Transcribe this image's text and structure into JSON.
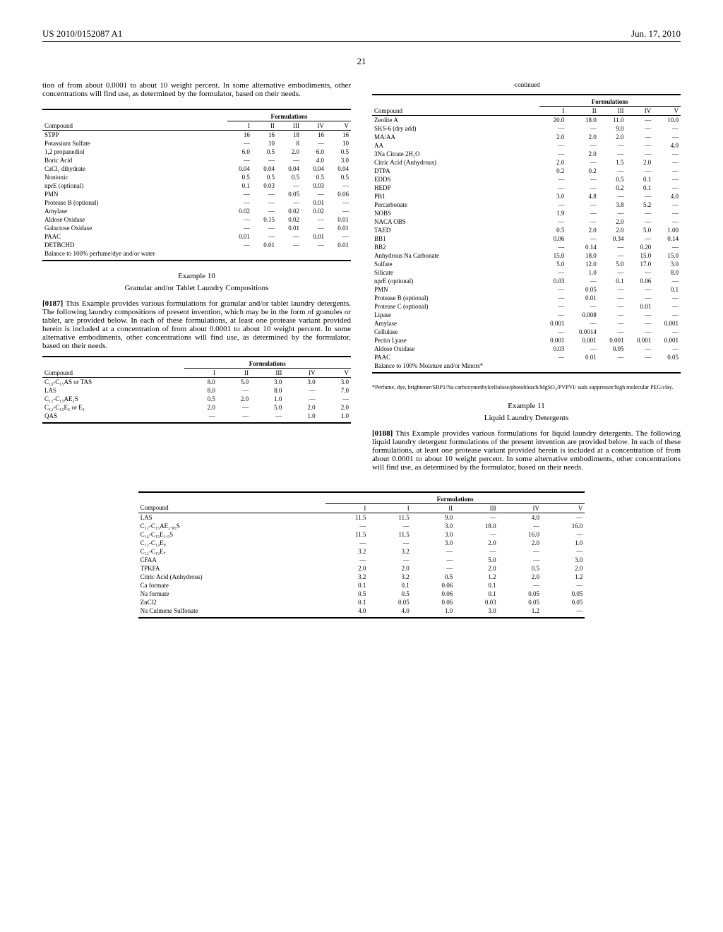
{
  "header": {
    "pub_number": "US 2010/0152087 A1",
    "pub_date": "Jun. 17, 2010",
    "page_number": "21"
  },
  "col1": {
    "intro_text": "tion of from about 0.0001 to about 10 weight percent. In some alternative embodiments, other concentrations will find use, as determined by the formulator, based on their needs.",
    "table1": {
      "formulations_label": "Formulations",
      "columns": [
        "Compound",
        "I",
        "II",
        "III",
        "IV",
        "V"
      ],
      "rows": [
        [
          "STPP",
          "16",
          "16",
          "18",
          "16",
          "16"
        ],
        [
          "Potassium Sulfate",
          "—",
          "10",
          "8",
          "—",
          "10"
        ],
        [
          "1,2 propanediol",
          "6.0",
          "0.5",
          "2.0",
          "6.0",
          "0.5"
        ],
        [
          "Boric Acid",
          "—",
          "—",
          "—",
          "4.0",
          "3.0"
        ],
        [
          "CaCl₂ dihydrate",
          "0.04",
          "0.04",
          "0.04",
          "0.04",
          "0.04"
        ],
        [
          "Nonionic",
          "0.5",
          "0.5",
          "0.5",
          "0.5",
          "0.5"
        ],
        [
          "nprE (optional)",
          "0.1",
          "0.03",
          "—",
          "0.03",
          "—"
        ],
        [
          "PMN",
          "—",
          "—",
          "0.05",
          "—",
          "0.06"
        ],
        [
          "Protease B (optional)",
          "—",
          "—",
          "—",
          "0.01",
          "—"
        ],
        [
          "Amylase",
          "0.02",
          "—",
          "0.02",
          "0.02",
          "—"
        ],
        [
          "Aldose Oxidase",
          "—",
          "0.15",
          "0.02",
          "—",
          "0.01"
        ],
        [
          "Galactose Oxidase",
          "—",
          "—",
          "0.01",
          "—",
          "0.01"
        ],
        [
          "PAAC",
          "0.01",
          "—",
          "—",
          "0.01",
          "—"
        ],
        [
          "DETBCHD",
          "—",
          "0.01",
          "—",
          "—",
          "0.01"
        ],
        [
          "Balance to 100% perfume/dye and/or water",
          "",
          "",
          "",
          "",
          ""
        ]
      ]
    },
    "example10": {
      "title": "Example 10",
      "subtitle": "Granular and/or Tablet Laundry Compositions",
      "para_num": "[0187]",
      "text": "This Example provides various formulations for granular and/or tablet laundry detergents. The following laundry compositions of present invention, which may be in the form of granules or tablet, are provided below. In each of these formulations, at least one protease variant provided herein is included at a concentration of from about 0.0001 to about 10 weight percent. In some alternative embodiments, other concentrations will find use, as determined by the formulator, based on their needs."
    },
    "table2": {
      "formulations_label": "Formulations",
      "columns": [
        "Compound",
        "I",
        "II",
        "III",
        "IV",
        "V"
      ],
      "rows": [
        [
          "C₁₄-C₁₅AS or TAS",
          "8.0",
          "5.0",
          "3.0",
          "3.0",
          "3.0"
        ],
        [
          "LAS",
          "8.0",
          "—",
          "8.0",
          "—",
          "7.0"
        ],
        [
          "C₁₂-C₁₅AE₃S",
          "0.5",
          "2.0",
          "1.0",
          "—",
          "—"
        ],
        [
          "C₁₂-C₁₅E₅ or E₃",
          "2.0",
          "—",
          "5.0",
          "2.0",
          "2.0"
        ],
        [
          "QAS",
          "—",
          "—",
          "—",
          "1.0",
          "1.0"
        ]
      ]
    }
  },
  "col2": {
    "continued_label": "-continued",
    "table3": {
      "formulations_label": "Formulations",
      "columns": [
        "Compound",
        "I",
        "II",
        "III",
        "IV",
        "V"
      ],
      "rows": [
        [
          "Zeolite A",
          "20.0",
          "18.0",
          "11.0",
          "—",
          "10.0"
        ],
        [
          "SKS-6 (dry add)",
          "—",
          "—",
          "9.0",
          "—",
          "—"
        ],
        [
          "MA/AA",
          "2.0",
          "2.0",
          "2.0",
          "—",
          "—"
        ],
        [
          "AA",
          "—",
          "—",
          "—",
          "—",
          "4.0"
        ],
        [
          "3Na Citrate 2H₂O",
          "—",
          "2.0",
          "—",
          "—",
          "—"
        ],
        [
          "Citric Acid (Anhydrous)",
          "2.0",
          "—",
          "1.5",
          "2.0",
          "—"
        ],
        [
          "DTPA",
          "0.2",
          "0.2",
          "—",
          "—",
          "—"
        ],
        [
          "EDDS",
          "—",
          "—",
          "0.5",
          "0.1",
          "—"
        ],
        [
          "HEDP",
          "—",
          "—",
          "0.2",
          "0.1",
          "—"
        ],
        [
          "PB1",
          "3.0",
          "4.8",
          "—",
          "—",
          "4.0"
        ],
        [
          "Percarbonate",
          "—",
          "—",
          "3.8",
          "5.2",
          "—"
        ],
        [
          "NOBS",
          "1.9",
          "—",
          "—",
          "—",
          "—"
        ],
        [
          "NACA OBS",
          "—",
          "—",
          "2.0",
          "—",
          "—"
        ],
        [
          "TAED",
          "0.5",
          "2.0",
          "2.0",
          "5.0",
          "1.00"
        ],
        [
          "BB1",
          "0.06",
          "—",
          "0.34",
          "—",
          "0.14"
        ],
        [
          "BB2",
          "—",
          "0.14",
          "—",
          "0.20",
          "—"
        ],
        [
          "Anhydrous Na Carbonate",
          "15.0",
          "18.0",
          "—",
          "15.0",
          "15.0"
        ],
        [
          "Sulfate",
          "5.0",
          "12.0",
          "5.0",
          "17.0",
          "3.0"
        ],
        [
          "Silicate",
          "—",
          "1.0",
          "—",
          "—",
          "8.0"
        ],
        [
          "nprE (optional)",
          "0.03",
          "—",
          "0.1",
          "0.06",
          "—"
        ],
        [
          "PMN",
          "—",
          "0.05",
          "—",
          "—",
          "0.1"
        ],
        [
          "Protease B (optional)",
          "—",
          "0.01",
          "—",
          "—",
          "—"
        ],
        [
          "Protease C (optional)",
          "—",
          "—",
          "—",
          "0.01",
          "—"
        ],
        [
          "Lipase",
          "—",
          "0.008",
          "—",
          "—",
          "—"
        ],
        [
          "Amylase",
          "0.001",
          "—",
          "—",
          "—",
          "0.001"
        ],
        [
          "Cellulase",
          "—",
          "0.0014",
          "—",
          "—",
          "—"
        ],
        [
          "Pectin Lyase",
          "0.001",
          "0.001",
          "0.001",
          "0.001",
          "0.001"
        ],
        [
          "Aldose Oxidase",
          "0.03",
          "—",
          "0.05",
          "—",
          "—"
        ],
        [
          "PAAC",
          "—",
          "0.01",
          "—",
          "—",
          "0.05"
        ],
        [
          "Balance to 100% Moisture and/or Minors*",
          "",
          "",
          "",
          "",
          ""
        ]
      ]
    },
    "footnote": "*Perfume, dye, brightener/SRP1/Na carboxymethylcellulose/photobleach/MgSO₄/PVPVI/ suds suppressor/high molecular PEG/clay.",
    "example11": {
      "title": "Example 11",
      "subtitle": "Liquid Laundry Detergents",
      "para_num": "[0188]",
      "text": "This Example provides various formulations for liquid laundry detergents. The following liquid laundry detergent formulations of the present invention are provided below. In each of these formulations, at least one protease variant provided herein is included at a concentration of from about 0.0001 to about 10 weight percent. In some alternative embodiments, other concentrations will find use, as determined by the formulator, based on their needs."
    }
  },
  "table4": {
    "formulations_label": "Formulations",
    "columns": [
      "Compound",
      "I",
      "I",
      "II",
      "III",
      "IV",
      "V"
    ],
    "rows": [
      [
        "LAS",
        "11.5",
        "11.5",
        "9.0",
        "—",
        "4.0",
        "—"
      ],
      [
        "C₁₂-C₁₅AE₂.₈₅S",
        "—",
        "—",
        "3.0",
        "18.0",
        "—",
        "16.0"
      ],
      [
        "C₁₄-C₁₅E₂.₅S",
        "11.5",
        "11.5",
        "3.0",
        "—",
        "16.0",
        "—"
      ],
      [
        "C₁₂-C₁₃E₉",
        "—",
        "—",
        "3.0",
        "2.0",
        "2.0",
        "1.0"
      ],
      [
        "C₁₂-C₁₃E₇",
        "3.2",
        "3.2",
        "—",
        "—",
        "—",
        "—"
      ],
      [
        "CFAA",
        "—",
        "—",
        "—",
        "5.0",
        "—",
        "3.0"
      ],
      [
        "TPKFA",
        "2.0",
        "2.0",
        "—",
        "2.0",
        "0.5",
        "2.0"
      ],
      [
        "Citric Acid (Anhydrous)",
        "3.2",
        "3.2",
        "0.5",
        "1.2",
        "2.0",
        "1.2"
      ],
      [
        "Ca formate",
        "0.1",
        "0.1",
        "0.06",
        "0.1",
        "—",
        "—"
      ],
      [
        "Na formate",
        "0.5",
        "0.5",
        "0.06",
        "0.1",
        "0.05",
        "0.05"
      ],
      [
        "ZnCl2",
        "0.1",
        "0.05",
        "0.06",
        "0.03",
        "0.05",
        "0.05"
      ],
      [
        "Na Culmene Sulfonate",
        "4.0",
        "4.0",
        "1.0",
        "3.0",
        "1.2",
        "—"
      ]
    ]
  }
}
